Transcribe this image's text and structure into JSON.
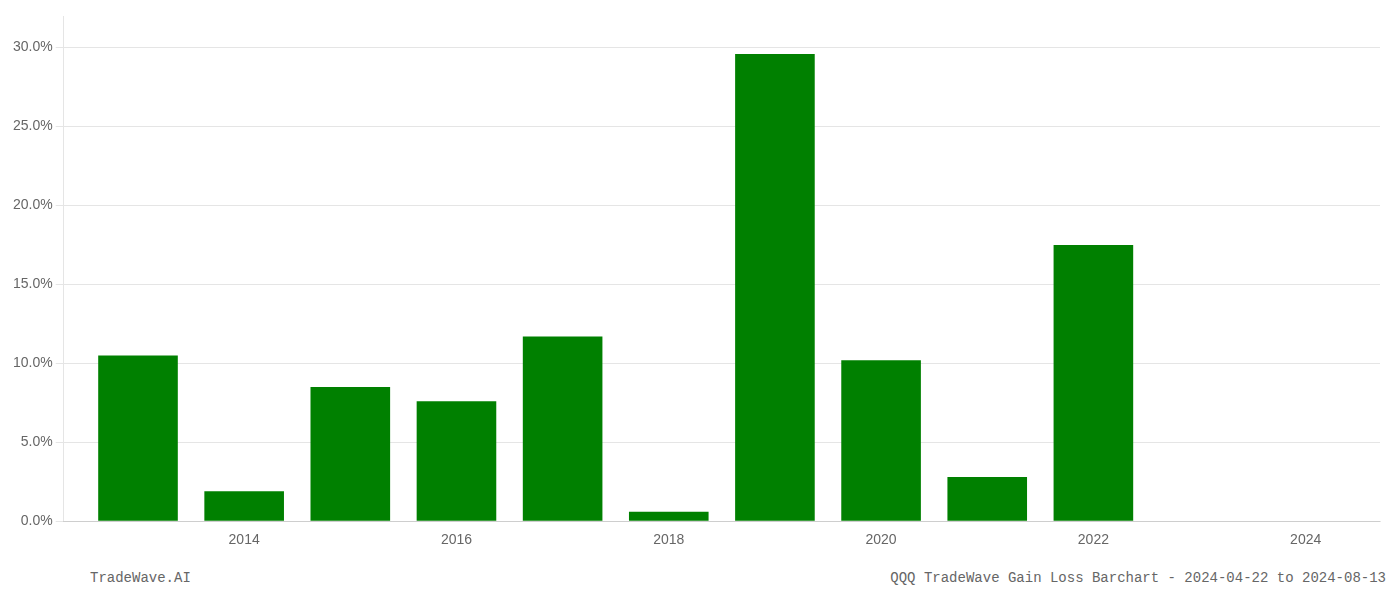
{
  "chart_data": {
    "type": "bar",
    "x": [
      2013,
      2014,
      2015,
      2016,
      2017,
      2018,
      2019,
      2020,
      2021,
      2022,
      2023
    ],
    "values": [
      0.105,
      0.019,
      0.085,
      0.076,
      0.117,
      0.006,
      0.296,
      0.102,
      0.028,
      0.175,
      0.0
    ],
    "color": "#008000",
    "xlim": [
      2012.3,
      2024.7
    ],
    "xticks": [
      2014,
      2016,
      2018,
      2020,
      2022,
      2024
    ],
    "ylim": [
      0,
      0.32
    ],
    "yticks": [
      {
        "value": 0.0,
        "label": "0.0%"
      },
      {
        "value": 0.05,
        "label": "5.0%"
      },
      {
        "value": 0.1,
        "label": "10.0%"
      },
      {
        "value": 0.15,
        "label": "15.0%"
      },
      {
        "value": 0.2,
        "label": "20.0%"
      },
      {
        "value": 0.25,
        "label": "25.0%"
      },
      {
        "value": 0.3,
        "label": "30.0%"
      }
    ],
    "grid": "y",
    "annotations": [
      "TradeWave.AI",
      "QQQ TradeWave Gain Loss Barchart - 2024-04-22 to 2024-08-13"
    ]
  }
}
